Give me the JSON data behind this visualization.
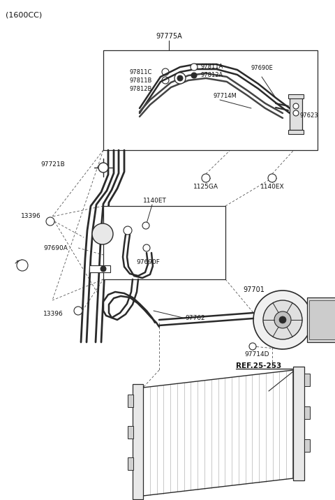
{
  "bg_color": "#ffffff",
  "lc": "#2a2a2a",
  "lc_light": "#aaaaaa",
  "fig_w": 4.8,
  "fig_h": 7.16,
  "dpi": 100,
  "title": "(1600CC)",
  "label_97775A": "97775A",
  "label_97811C": "97811C",
  "label_97811B": "97811B",
  "label_97812B": "97812B",
  "label_97811A": "97811A",
  "label_97812A": "97812A",
  "label_97690E": "97690E",
  "label_97714M": "97714M",
  "label_97623": "97623",
  "label_97721B": "97721B",
  "label_1125GA": "1125GA",
  "label_1140EX": "1140EX",
  "label_13396a": "13396",
  "label_13396b": "13396",
  "label_1140ET": "1140ET",
  "label_97690A": "97690A",
  "label_97690F": "97690F",
  "label_97762": "97762",
  "label_97701": "97701",
  "label_97714D": "97714D",
  "label_REF": "REF.25-253"
}
